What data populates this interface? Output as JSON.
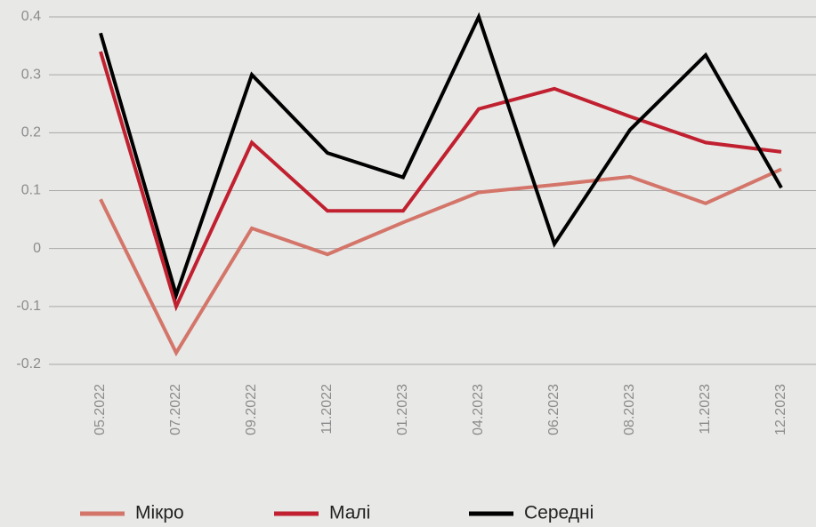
{
  "chart_data": {
    "type": "line",
    "categories": [
      "05.2022",
      "07.2022",
      "09.2022",
      "11.2022",
      "01.2023",
      "04.2023",
      "06.2023",
      "08.2023",
      "11.2023",
      "12.2023"
    ],
    "series": [
      {
        "name": "Мікро",
        "color": "#d4756a",
        "values": [
          0.085,
          -0.18,
          0.035,
          -0.01,
          0.045,
          0.097,
          0.11,
          0.124,
          0.078,
          0.137
        ]
      },
      {
        "name": "Малі",
        "color": "#c0202f",
        "values": [
          0.34,
          -0.1,
          0.183,
          0.065,
          0.065,
          0.241,
          0.276,
          0.228,
          0.183,
          0.167
        ]
      },
      {
        "name": "Середні",
        "color": "#000000",
        "values": [
          0.372,
          -0.08,
          0.3,
          0.165,
          0.123,
          0.4,
          0.008,
          0.205,
          0.334,
          0.105
        ]
      }
    ],
    "ylim": [
      -0.2,
      0.4
    ],
    "yticks": [
      0.4,
      0.3,
      0.2,
      0.1,
      0,
      -0.1,
      -0.2
    ],
    "grid": true,
    "legend": "bottom"
  }
}
